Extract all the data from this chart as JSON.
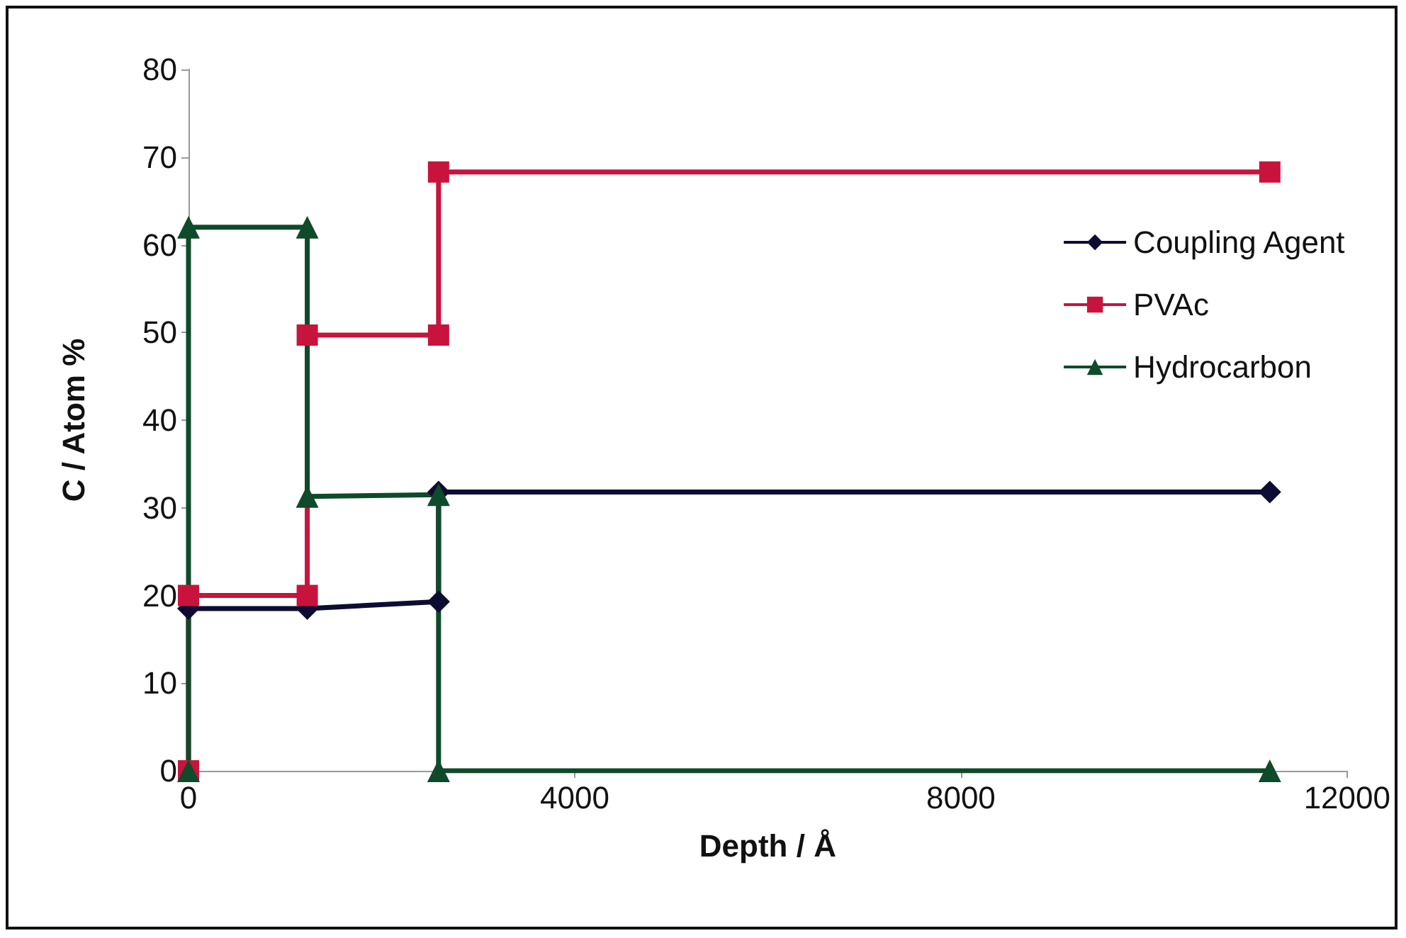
{
  "chart_data": {
    "type": "line",
    "xlabel": "Depth / Å",
    "ylabel": "C / Atom %",
    "xlim": [
      0,
      12000
    ],
    "xticks": [
      0,
      4000,
      8000,
      12000
    ],
    "ylim": [
      0,
      80
    ],
    "yticks": [
      0,
      10,
      20,
      30,
      40,
      50,
      60,
      70,
      80
    ],
    "grid": false,
    "legend": "top right",
    "series": [
      {
        "name": "Coupling Agent",
        "color": "#0d0d33",
        "marker": "diamond",
        "x": [
          0,
          1230,
          2590,
          2590,
          11200
        ],
        "values": [
          18.5,
          18.5,
          19.3,
          31.8,
          31.8
        ]
      },
      {
        "name": "PVAc",
        "color": "#c8143c",
        "marker": "square",
        "x": [
          0,
          0,
          1230,
          1230,
          2590,
          2590,
          11200
        ],
        "values": [
          0,
          20,
          20,
          49.7,
          49.7,
          68.3,
          68.3
        ]
      },
      {
        "name": "Hydrocarbon",
        "color": "#0f4a2a",
        "marker": "triangle",
        "x": [
          0,
          0,
          1230,
          1230,
          2590,
          2590,
          11200
        ],
        "values": [
          0,
          62,
          62,
          31.3,
          31.5,
          0,
          0
        ]
      }
    ]
  }
}
